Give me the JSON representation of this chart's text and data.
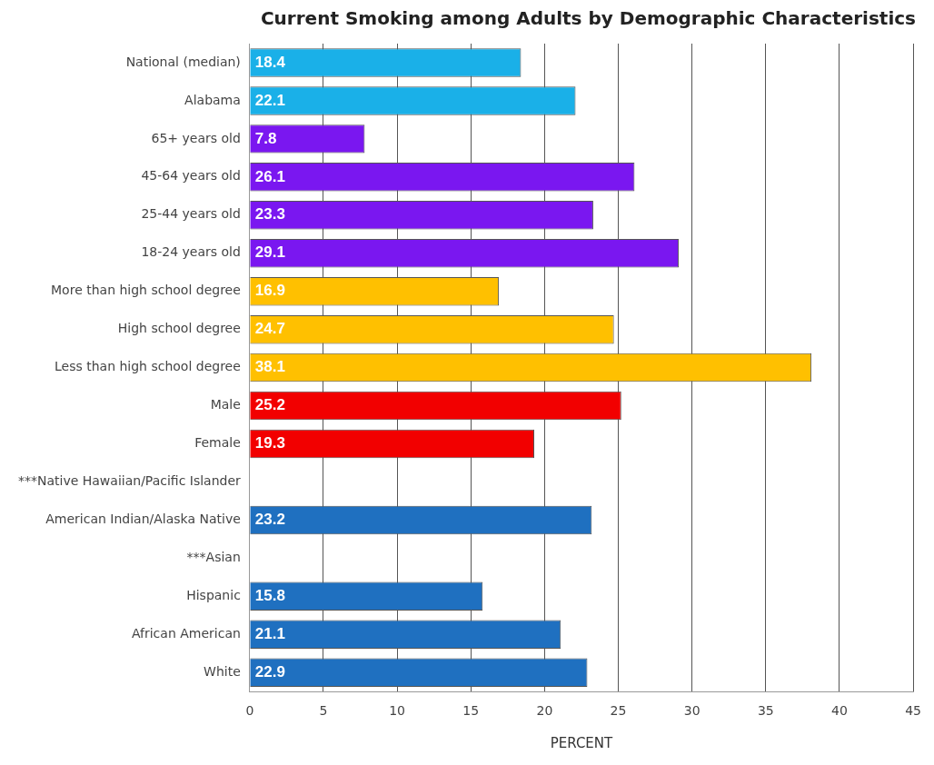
{
  "chart_data": {
    "type": "bar",
    "orientation": "horizontal",
    "title": "Current Smoking among Adults by Demographic Characteristics",
    "xlabel": "PERCENT",
    "categories": [
      "National (median)",
      "Alabama",
      "65+ years old",
      "45-64 years old",
      "25-44 years old",
      "18-24 years old",
      "More than high school degree",
      "High school degree",
      "Less than high school degree",
      "Male",
      "Female",
      "***Native Hawaiian/Pacific Islander",
      "American Indian/Alaska Native",
      "***Asian",
      "Hispanic",
      "African American",
      "White"
    ],
    "values": [
      18.4,
      22.1,
      7.8,
      26.1,
      23.3,
      29.1,
      16.9,
      24.7,
      38.1,
      25.2,
      19.3,
      null,
      23.2,
      null,
      15.8,
      21.1,
      22.9
    ],
    "colors": [
      "#1ab0e8",
      "#1ab0e8",
      "#7a17f0",
      "#7a17f0",
      "#7a17f0",
      "#7a17f0",
      "#ffc000",
      "#ffc000",
      "#ffc000",
      "#f20000",
      "#f20000",
      "#1f70c0",
      "#1f70c0",
      "#1f70c0",
      "#1f70c0",
      "#1f70c0",
      "#1f70c0"
    ],
    "xlim": [
      0,
      45
    ],
    "xticks": [
      0,
      5,
      10,
      15,
      20,
      25,
      30,
      35,
      40,
      45
    ],
    "grid": "x",
    "data_labels": true,
    "legend": false
  }
}
